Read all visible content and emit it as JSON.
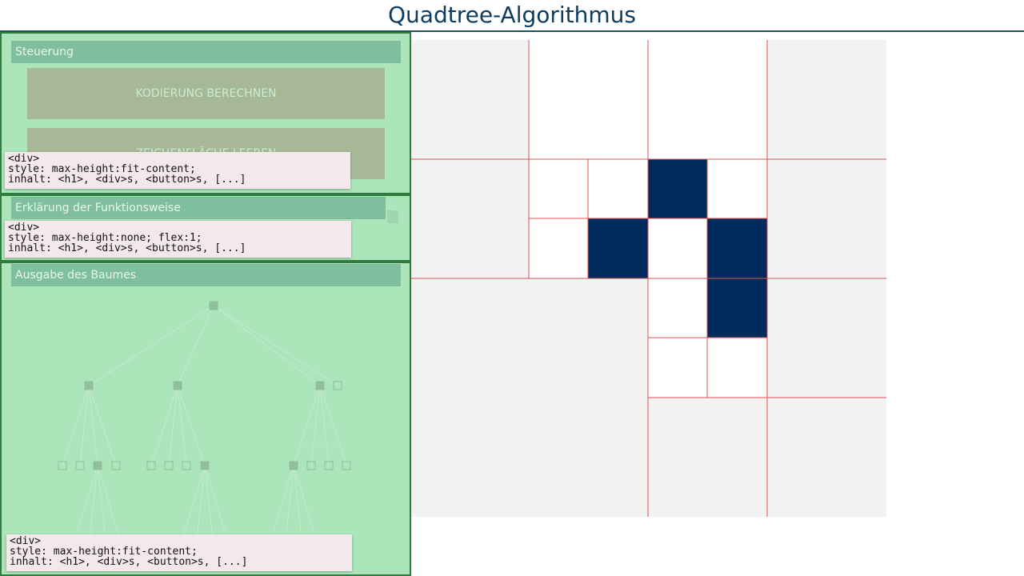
{
  "header": {
    "title": "Quadtree-Algorithmus"
  },
  "panels": [
    {
      "heading": "Steuerung",
      "buttons": [
        "KODIERUNG BERECHNEN",
        "ZEICHENFLÄCHE LEEREN"
      ],
      "inspector": {
        "tag": "<div>",
        "style": "style: max-height:fit-content;",
        "content": "inhalt: <h1>, <div>s, <button>s, [...]"
      }
    },
    {
      "heading": "Erklärung der Funktionsweise",
      "inspector": {
        "tag": "<div>",
        "style": "style: max-height:none; flex:1;",
        "content": "inhalt: <h1>, <div>s, <button>s, [...]"
      }
    },
    {
      "heading": "Ausgabe des Baumes",
      "inspector": {
        "tag": "<div>",
        "style": "style: max-height:fit-content;",
        "content": "inhalt: <h1>, <div>s, <button>s, [...]"
      }
    }
  ]
}
